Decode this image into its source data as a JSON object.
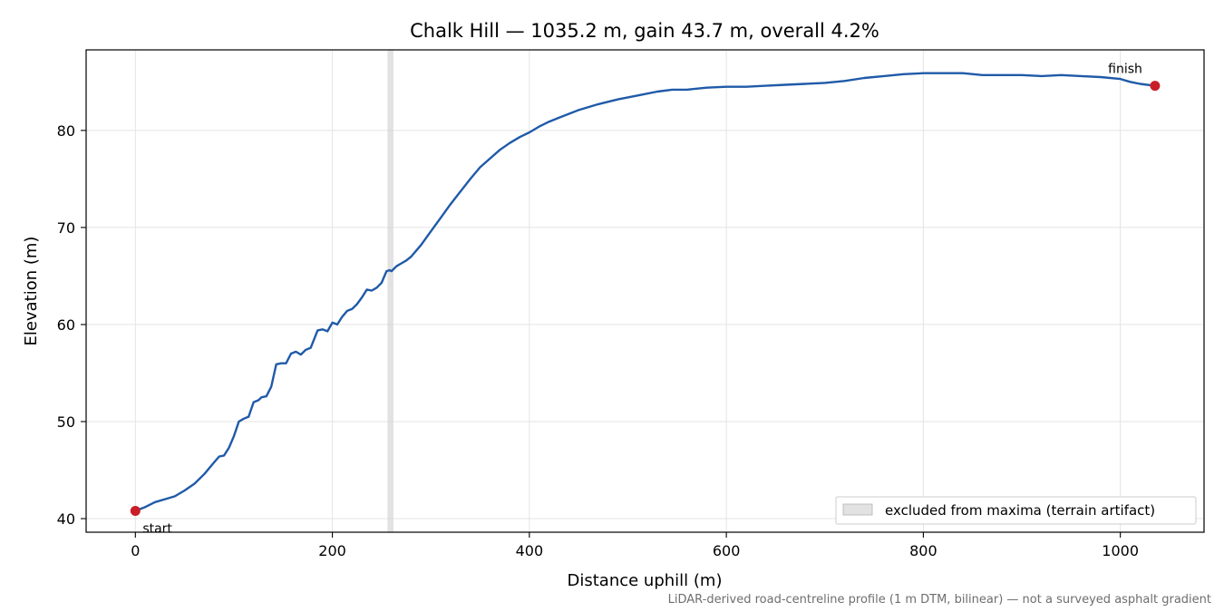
{
  "chart_data": {
    "type": "line",
    "title": "Chalk Hill — 1035.2 m, gain 43.7 m, overall 4.2%",
    "xlabel": "Distance uphill (m)",
    "ylabel": "Elevation (m)",
    "xlim": [
      -50,
      1085
    ],
    "ylim": [
      38.6,
      88.3
    ],
    "xticks": [
      0,
      200,
      400,
      600,
      800,
      1000
    ],
    "yticks": [
      40,
      50,
      60,
      70,
      80
    ],
    "grid": true,
    "legend_position": "bottom-right",
    "colors": {
      "line": "#1f5aa8",
      "marker": "#c81e28",
      "band": "#d3d3d3",
      "grid": "#e4e4e4"
    },
    "series": [
      {
        "x": [
          0,
          10,
          20,
          30,
          40,
          50,
          60,
          70,
          80,
          85,
          90,
          95,
          100,
          105,
          110,
          115,
          120,
          125,
          128,
          133,
          138,
          143,
          148,
          153,
          158,
          163,
          168,
          173,
          178,
          185,
          190,
          195,
          200,
          205,
          210,
          215,
          220,
          225,
          230,
          235,
          240,
          245,
          250,
          255,
          258,
          260,
          265,
          270,
          275,
          280,
          290,
          300,
          310,
          320,
          330,
          340,
          350,
          360,
          370,
          380,
          390,
          400,
          410,
          420,
          430,
          440,
          450,
          470,
          490,
          510,
          530,
          545,
          560,
          580,
          600,
          620,
          640,
          660,
          680,
          700,
          720,
          740,
          760,
          780,
          800,
          820,
          840,
          860,
          880,
          900,
          920,
          940,
          960,
          980,
          1000,
          1010,
          1020,
          1035
        ],
        "y": [
          40.8,
          41.2,
          41.7,
          42.0,
          42.3,
          42.9,
          43.6,
          44.6,
          45.8,
          46.4,
          46.5,
          47.3,
          48.5,
          50.0,
          50.3,
          50.5,
          52.0,
          52.2,
          52.5,
          52.6,
          53.6,
          55.9,
          56.0,
          56.0,
          57.0,
          57.2,
          56.9,
          57.4,
          57.6,
          59.4,
          59.5,
          59.3,
          60.2,
          60.0,
          60.8,
          61.4,
          61.6,
          62.1,
          62.8,
          63.6,
          63.5,
          63.8,
          64.3,
          65.5,
          65.6,
          65.5,
          66.0,
          66.3,
          66.6,
          67.0,
          68.2,
          69.6,
          71.0,
          72.4,
          73.7,
          75.0,
          76.2,
          77.1,
          78.0,
          78.7,
          79.3,
          79.8,
          80.4,
          80.9,
          81.3,
          81.7,
          82.1,
          82.7,
          83.2,
          83.6,
          84.0,
          84.2,
          84.2,
          84.4,
          84.5,
          84.5,
          84.6,
          84.7,
          84.8,
          84.9,
          85.1,
          85.4,
          85.6,
          85.8,
          85.9,
          85.9,
          85.9,
          85.7,
          85.7,
          85.7,
          85.6,
          85.7,
          85.6,
          85.5,
          85.3,
          85.0,
          84.8,
          84.6
        ]
      }
    ],
    "markers": [
      {
        "label": "start",
        "x": 0,
        "y": 40.8
      },
      {
        "label": "finish",
        "x": 1035.2,
        "y": 84.6
      }
    ],
    "excluded_band": {
      "x0": 256,
      "x1": 262
    },
    "legend": [
      {
        "label": "excluded from maxima (terrain artifact)"
      }
    ],
    "footnote": "LiDAR-derived road-centreline profile (1 m DTM, bilinear) — not a surveyed asphalt gradient"
  }
}
